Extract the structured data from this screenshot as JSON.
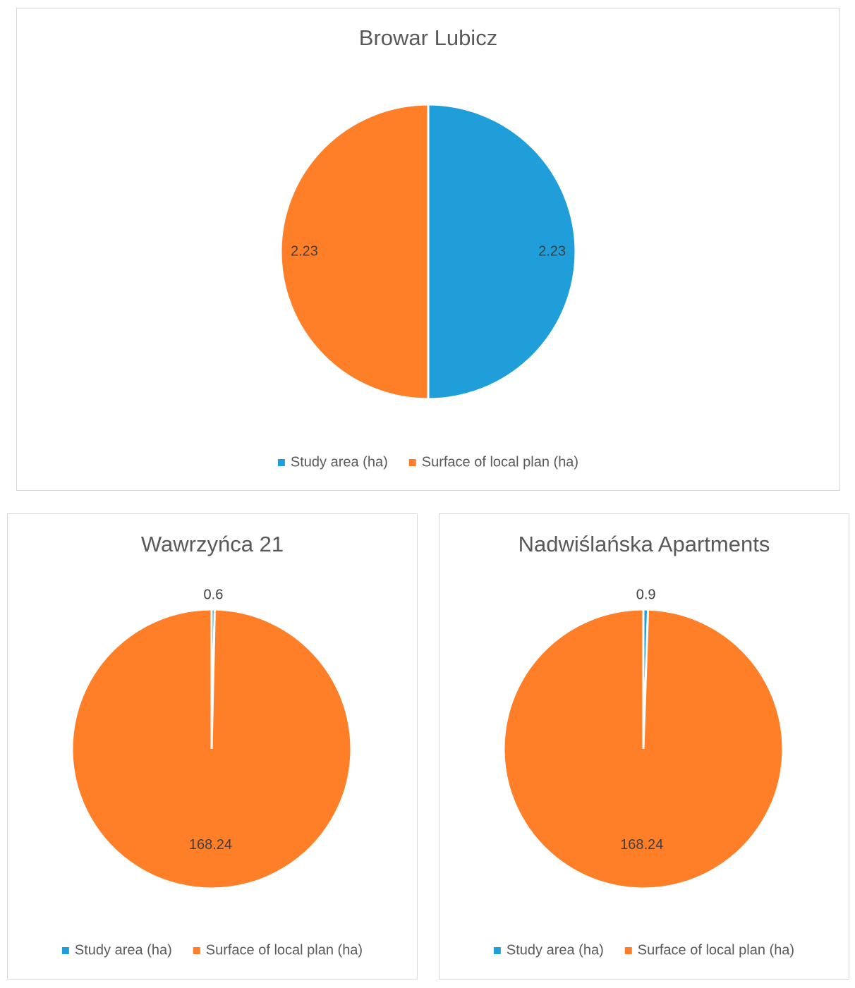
{
  "chart_data": [
    {
      "type": "pie",
      "title": "Browar Lubicz",
      "categories": [
        "Study area (ha)",
        "Surface of local plan (ha)"
      ],
      "values": [
        2.23,
        2.23
      ],
      "colors": [
        "#1f9ed9",
        "#fe7f28"
      ]
    },
    {
      "type": "pie",
      "title": "Wawrzyńca 21",
      "categories": [
        "Study area (ha)",
        "Surface of local plan (ha)"
      ],
      "values": [
        0.6,
        168.24
      ],
      "colors": [
        "#1f9ed9",
        "#fe7f28"
      ]
    },
    {
      "type": "pie",
      "title": "Nadwiślańska Apartments",
      "categories": [
        "Study area (ha)",
        "Surface of local plan (ha)"
      ],
      "values": [
        0.9,
        168.24
      ],
      "colors": [
        "#1f9ed9",
        "#fe7f28"
      ]
    }
  ]
}
